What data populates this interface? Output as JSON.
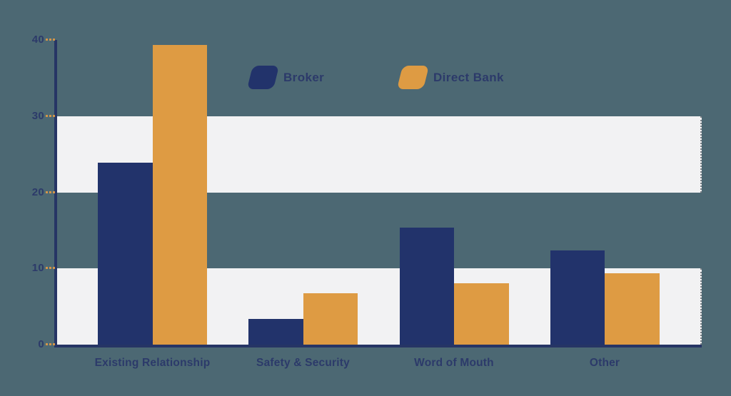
{
  "chart_data": {
    "type": "bar",
    "title": "",
    "xlabel": "",
    "ylabel": "",
    "categories": [
      "Existing Relationship",
      "Safety & Security",
      "Word of Mouth",
      "Other"
    ],
    "series": [
      {
        "name": "Broker",
        "color": "#22336b",
        "values": [
          23.9,
          3.4,
          15.4,
          12.4
        ]
      },
      {
        "name": "Direct Bank",
        "color": "#de9b43",
        "values": [
          39.3,
          6.7,
          8.1,
          9.4
        ]
      }
    ],
    "ylim": [
      0,
      40
    ],
    "yticks": [
      0,
      10,
      20,
      30,
      40
    ],
    "shaded_bands": [
      [
        20,
        30
      ],
      [
        0,
        10
      ]
    ],
    "grid": false,
    "legend_position": "top-center",
    "legend": [
      "Broker",
      "Direct Bank"
    ]
  },
  "colors": {
    "background": "#4c6873",
    "band": "#f2f2f3",
    "axis": "#263565",
    "tick": "#d2954a",
    "text": "#2c3a6a",
    "broker": "#22336b",
    "direct_bank": "#de9b43"
  }
}
